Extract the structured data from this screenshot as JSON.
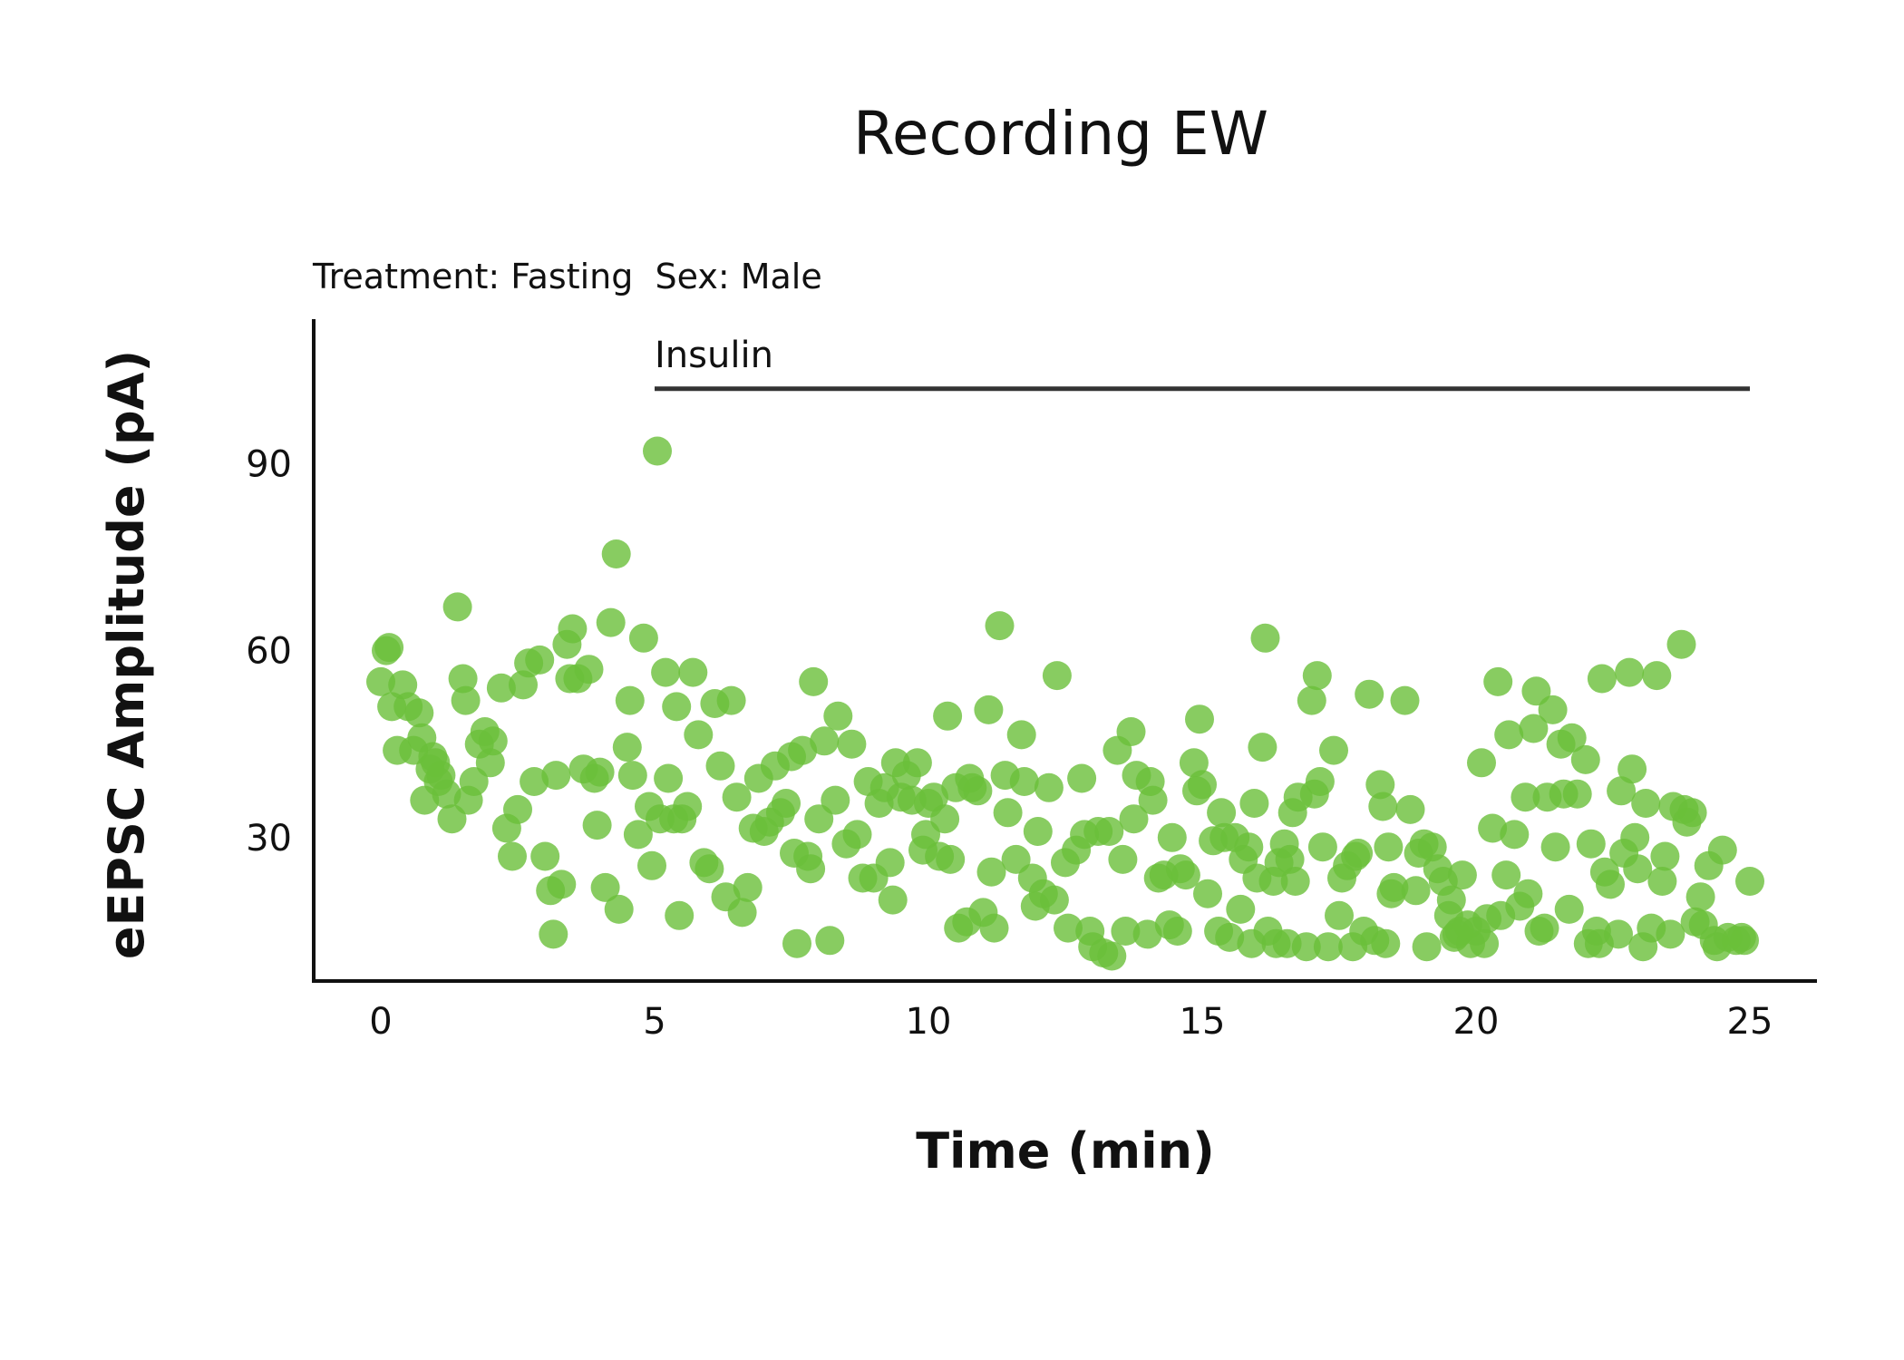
{
  "chart_data": {
    "type": "scatter",
    "title": "Recording EW",
    "subtitle": "Treatment: Fasting  Sex: Male",
    "xlabel": "Time (min)",
    "ylabel": "eEPSC Amplitude (pA)",
    "xlim": [
      -1.2,
      26.2
    ],
    "ylim": [
      7,
      112
    ],
    "xticks": [
      0,
      5,
      10,
      15,
      20,
      25
    ],
    "yticks": [
      30,
      60,
      90
    ],
    "grid": false,
    "point_color": "#6abf3a",
    "annotation": {
      "label": "Insulin",
      "x_start": 5,
      "x_end": 25,
      "y": 102
    },
    "series": [
      {
        "points": [
          [
            0.0,
            55
          ],
          [
            0.1,
            60
          ],
          [
            0.15,
            60.5
          ],
          [
            0.2,
            51
          ],
          [
            0.3,
            44
          ],
          [
            0.4,
            54.5
          ],
          [
            0.5,
            51
          ],
          [
            0.6,
            44
          ],
          [
            0.7,
            50
          ],
          [
            0.75,
            46
          ],
          [
            0.8,
            36
          ],
          [
            0.9,
            41
          ],
          [
            0.95,
            43
          ],
          [
            1.0,
            42
          ],
          [
            1.05,
            39
          ],
          [
            1.1,
            40
          ],
          [
            1.2,
            37
          ],
          [
            1.3,
            33
          ],
          [
            1.4,
            67
          ],
          [
            1.5,
            55.5
          ],
          [
            1.55,
            52
          ],
          [
            1.6,
            36
          ],
          [
            1.7,
            39
          ],
          [
            1.8,
            45
          ],
          [
            1.9,
            47
          ],
          [
            2.0,
            42
          ],
          [
            2.05,
            45.5
          ],
          [
            2.2,
            54
          ],
          [
            2.3,
            31.5
          ],
          [
            2.4,
            27
          ],
          [
            2.5,
            34.5
          ],
          [
            2.6,
            54.5
          ],
          [
            2.7,
            58
          ],
          [
            2.8,
            39
          ],
          [
            2.9,
            58.5
          ],
          [
            3.0,
            27
          ],
          [
            3.1,
            21.5
          ],
          [
            3.15,
            14.5
          ],
          [
            3.2,
            40
          ],
          [
            3.3,
            22.5
          ],
          [
            3.4,
            61
          ],
          [
            3.45,
            55.5
          ],
          [
            3.5,
            63.5
          ],
          [
            3.6,
            55.5
          ],
          [
            3.7,
            41
          ],
          [
            3.8,
            57
          ],
          [
            3.9,
            39.5
          ],
          [
            3.95,
            32
          ],
          [
            4.0,
            40.5
          ],
          [
            4.1,
            22
          ],
          [
            4.2,
            64.5
          ],
          [
            4.3,
            75.5
          ],
          [
            4.35,
            18.5
          ],
          [
            4.5,
            44.5
          ],
          [
            4.55,
            52
          ],
          [
            4.6,
            40
          ],
          [
            4.7,
            30.5
          ],
          [
            4.8,
            62
          ],
          [
            4.9,
            35
          ],
          [
            4.95,
            25.5
          ],
          [
            5.05,
            92
          ],
          [
            5.1,
            33
          ],
          [
            5.2,
            56.5
          ],
          [
            5.25,
            39.5
          ],
          [
            5.35,
            33
          ],
          [
            5.4,
            51
          ],
          [
            5.45,
            17.5
          ],
          [
            5.5,
            33
          ],
          [
            5.6,
            35
          ],
          [
            5.7,
            56.5
          ],
          [
            5.8,
            46.5
          ],
          [
            5.9,
            26
          ],
          [
            6.0,
            25
          ],
          [
            6.1,
            51.5
          ],
          [
            6.2,
            41.5
          ],
          [
            6.3,
            20.5
          ],
          [
            6.4,
            52
          ],
          [
            6.5,
            36.5
          ],
          [
            6.6,
            18
          ],
          [
            6.7,
            22
          ],
          [
            6.8,
            31.5
          ],
          [
            6.9,
            39.5
          ],
          [
            7.0,
            31
          ],
          [
            7.1,
            32.5
          ],
          [
            7.2,
            41.5
          ],
          [
            7.3,
            34
          ],
          [
            7.4,
            35.5
          ],
          [
            7.5,
            43
          ],
          [
            7.55,
            27.5
          ],
          [
            7.6,
            13
          ],
          [
            7.7,
            44
          ],
          [
            7.8,
            27
          ],
          [
            7.85,
            25
          ],
          [
            7.9,
            55
          ],
          [
            8.0,
            33
          ],
          [
            8.1,
            45.5
          ],
          [
            8.2,
            13.5
          ],
          [
            8.3,
            36
          ],
          [
            8.35,
            49.5
          ],
          [
            8.5,
            29
          ],
          [
            8.6,
            45
          ],
          [
            8.7,
            30.5
          ],
          [
            8.8,
            23.5
          ],
          [
            8.9,
            39
          ],
          [
            9.0,
            23.5
          ],
          [
            9.1,
            35.5
          ],
          [
            9.2,
            38
          ],
          [
            9.3,
            26
          ],
          [
            9.35,
            20
          ],
          [
            9.4,
            42
          ],
          [
            9.5,
            36.5
          ],
          [
            9.6,
            40
          ],
          [
            9.7,
            36
          ],
          [
            9.8,
            42
          ],
          [
            9.9,
            28
          ],
          [
            9.95,
            30.5
          ],
          [
            10.0,
            35.5
          ],
          [
            10.1,
            36.5
          ],
          [
            10.2,
            27
          ],
          [
            10.3,
            33
          ],
          [
            10.35,
            49.5
          ],
          [
            10.4,
            26.5
          ],
          [
            10.5,
            38
          ],
          [
            10.55,
            15.5
          ],
          [
            10.7,
            16.5
          ],
          [
            10.75,
            39.5
          ],
          [
            10.8,
            38
          ],
          [
            10.9,
            37.5
          ],
          [
            11.0,
            18
          ],
          [
            11.1,
            50.5
          ],
          [
            11.15,
            24.5
          ],
          [
            11.2,
            15.5
          ],
          [
            11.3,
            64
          ],
          [
            11.4,
            40
          ],
          [
            11.45,
            34
          ],
          [
            11.6,
            26.5
          ],
          [
            11.7,
            46.5
          ],
          [
            11.75,
            39
          ],
          [
            11.9,
            23.5
          ],
          [
            11.95,
            19
          ],
          [
            12.0,
            31
          ],
          [
            12.1,
            21
          ],
          [
            12.2,
            38
          ],
          [
            12.3,
            20
          ],
          [
            12.35,
            56
          ],
          [
            12.5,
            26
          ],
          [
            12.55,
            15.5
          ],
          [
            12.7,
            28
          ],
          [
            12.8,
            39.5
          ],
          [
            12.85,
            30.5
          ],
          [
            12.95,
            15
          ],
          [
            13.0,
            12.5
          ],
          [
            13.1,
            31
          ],
          [
            13.2,
            11.5
          ],
          [
            13.3,
            31
          ],
          [
            13.35,
            11
          ],
          [
            13.45,
            44
          ],
          [
            13.55,
            26.5
          ],
          [
            13.6,
            15
          ],
          [
            13.7,
            47
          ],
          [
            13.75,
            33
          ],
          [
            13.8,
            40
          ],
          [
            14.0,
            14.5
          ],
          [
            14.05,
            39
          ],
          [
            14.1,
            36
          ],
          [
            14.2,
            23.5
          ],
          [
            14.3,
            24
          ],
          [
            14.4,
            16
          ],
          [
            14.45,
            30
          ],
          [
            14.55,
            15
          ],
          [
            14.6,
            25
          ],
          [
            14.7,
            24
          ],
          [
            14.85,
            42
          ],
          [
            14.9,
            37.5
          ],
          [
            14.95,
            49
          ],
          [
            15.0,
            38.5
          ],
          [
            15.1,
            21
          ],
          [
            15.2,
            29.5
          ],
          [
            15.3,
            15
          ],
          [
            15.35,
            34
          ],
          [
            15.4,
            30
          ],
          [
            15.5,
            14
          ],
          [
            15.6,
            30
          ],
          [
            15.7,
            18.5
          ],
          [
            15.75,
            26.5
          ],
          [
            15.85,
            28.5
          ],
          [
            15.9,
            13
          ],
          [
            15.95,
            35.5
          ],
          [
            16.0,
            23.5
          ],
          [
            16.1,
            44.5
          ],
          [
            16.15,
            62
          ],
          [
            16.2,
            15
          ],
          [
            16.3,
            23
          ],
          [
            16.35,
            13
          ],
          [
            16.4,
            26
          ],
          [
            16.5,
            29
          ],
          [
            16.55,
            13
          ],
          [
            16.6,
            26.5
          ],
          [
            16.65,
            34
          ],
          [
            16.7,
            23
          ],
          [
            16.75,
            36.5
          ],
          [
            16.9,
            12.5
          ],
          [
            17.0,
            52
          ],
          [
            17.05,
            37
          ],
          [
            17.1,
            56
          ],
          [
            17.15,
            39
          ],
          [
            17.2,
            28.5
          ],
          [
            17.3,
            12.5
          ],
          [
            17.4,
            44
          ],
          [
            17.5,
            17.5
          ],
          [
            17.55,
            23.5
          ],
          [
            17.65,
            25.5
          ],
          [
            17.75,
            12.5
          ],
          [
            17.8,
            27
          ],
          [
            17.85,
            27.5
          ],
          [
            17.95,
            15
          ],
          [
            18.05,
            53
          ],
          [
            18.15,
            13.5
          ],
          [
            18.25,
            38.5
          ],
          [
            18.3,
            35
          ],
          [
            18.35,
            13
          ],
          [
            18.4,
            28.5
          ],
          [
            18.45,
            21
          ],
          [
            18.5,
            22
          ],
          [
            18.7,
            52
          ],
          [
            18.8,
            34.5
          ],
          [
            18.9,
            21.5
          ],
          [
            18.95,
            27.5
          ],
          [
            19.05,
            29
          ],
          [
            19.1,
            12.5
          ],
          [
            19.2,
            28.5
          ],
          [
            19.3,
            25
          ],
          [
            19.4,
            23
          ],
          [
            19.5,
            17.5
          ],
          [
            19.55,
            20
          ],
          [
            19.6,
            14
          ],
          [
            19.65,
            14.5
          ],
          [
            19.7,
            15
          ],
          [
            19.75,
            24
          ],
          [
            19.85,
            16
          ],
          [
            19.9,
            13
          ],
          [
            20.0,
            15
          ],
          [
            20.1,
            42
          ],
          [
            20.15,
            13
          ],
          [
            20.2,
            17
          ],
          [
            20.3,
            31.5
          ],
          [
            20.4,
            55
          ],
          [
            20.45,
            17.5
          ],
          [
            20.55,
            24
          ],
          [
            20.6,
            46.5
          ],
          [
            20.7,
            30.5
          ],
          [
            20.8,
            19
          ],
          [
            20.9,
            36.5
          ],
          [
            20.95,
            21
          ],
          [
            21.05,
            47.5
          ],
          [
            21.1,
            53.5
          ],
          [
            21.15,
            15
          ],
          [
            21.25,
            15.5
          ],
          [
            21.3,
            36.5
          ],
          [
            21.4,
            50.5
          ],
          [
            21.45,
            28.5
          ],
          [
            21.55,
            45
          ],
          [
            21.6,
            37
          ],
          [
            21.7,
            18.5
          ],
          [
            21.75,
            46
          ],
          [
            21.85,
            37
          ],
          [
            22.0,
            42.5
          ],
          [
            22.05,
            13
          ],
          [
            22.1,
            29
          ],
          [
            22.2,
            15
          ],
          [
            22.25,
            13
          ],
          [
            22.3,
            55.5
          ],
          [
            22.35,
            24.5
          ],
          [
            22.45,
            22.5
          ],
          [
            22.6,
            14.5
          ],
          [
            22.65,
            37.5
          ],
          [
            22.7,
            27.5
          ],
          [
            22.8,
            56.5
          ],
          [
            22.85,
            41
          ],
          [
            22.9,
            30
          ],
          [
            22.95,
            25
          ],
          [
            23.05,
            12.5
          ],
          [
            23.1,
            35.5
          ],
          [
            23.2,
            15.5
          ],
          [
            23.3,
            56
          ],
          [
            23.4,
            23
          ],
          [
            23.45,
            27
          ],
          [
            23.55,
            14.5
          ],
          [
            23.6,
            35
          ],
          [
            23.75,
            61
          ],
          [
            23.8,
            34.5
          ],
          [
            23.85,
            32.5
          ],
          [
            23.95,
            34
          ],
          [
            24.0,
            16.5
          ],
          [
            24.1,
            20.5
          ],
          [
            24.15,
            16
          ],
          [
            24.25,
            25.5
          ],
          [
            24.35,
            13.5
          ],
          [
            24.4,
            12.5
          ],
          [
            24.5,
            28
          ],
          [
            24.6,
            14
          ],
          [
            24.75,
            13.5
          ],
          [
            24.85,
            14
          ],
          [
            24.9,
            13.5
          ],
          [
            25.0,
            23
          ]
        ]
      }
    ]
  }
}
